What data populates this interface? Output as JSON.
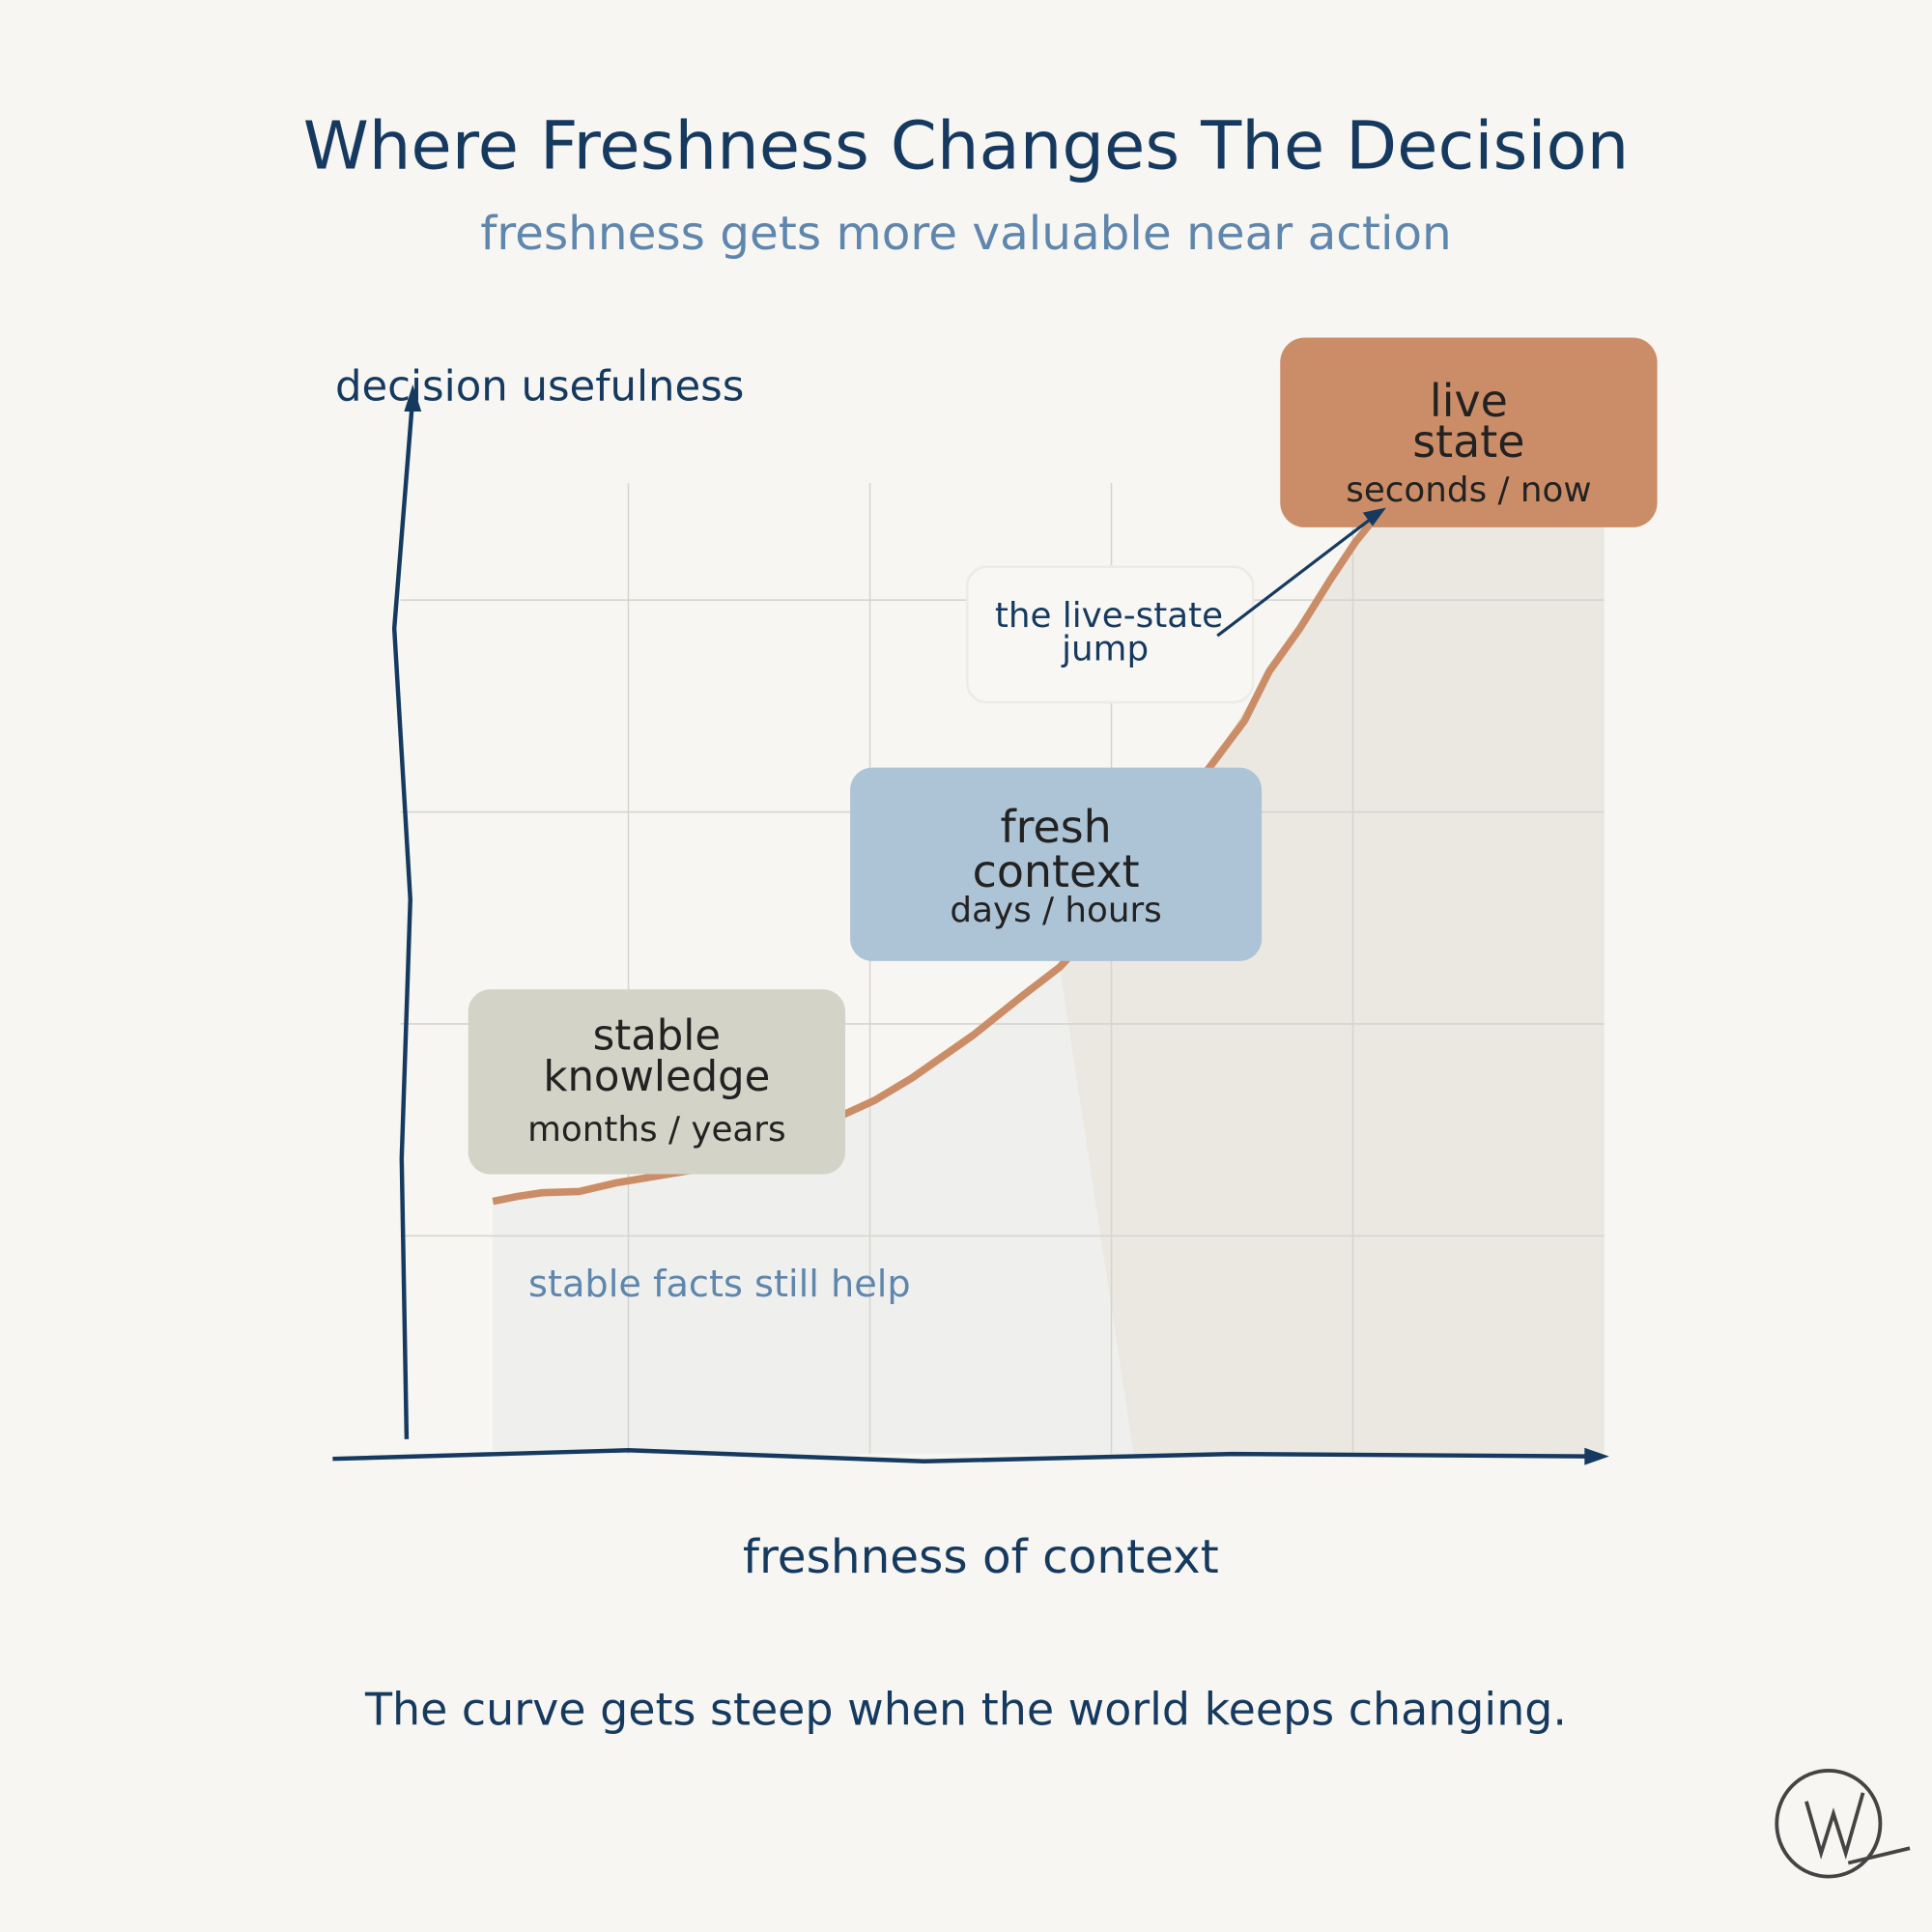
{
  "title": "Where Freshness Changes The Decision",
  "subtitle": "freshness gets more valuable near action",
  "axes": {
    "y_label": "decision usefulness",
    "x_label": "freshness of context"
  },
  "zones": [
    {
      "lines": [
        "stable",
        "knowledge"
      ],
      "timescale": "months / years"
    },
    {
      "lines": [
        "fresh",
        "context"
      ],
      "timescale": "days / hours"
    },
    {
      "lines": [
        "live",
        "state"
      ],
      "timescale": "seconds / now"
    }
  ],
  "callout": {
    "lines": [
      "the live-state",
      "jump"
    ]
  },
  "annotation": "stable facts still help",
  "footer": "The curve gets steep when the world keeps changing."
}
